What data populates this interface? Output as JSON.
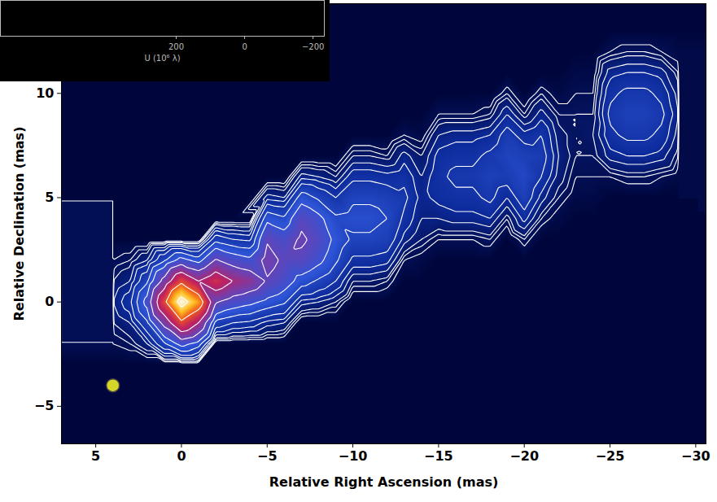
{
  "chart_data": [
    {
      "type": "image",
      "x_label": "Relative Right Ascension (mas)",
      "y_label": "Relative Declination (mas)",
      "xlim": [
        7,
        -30.6
      ],
      "ylim": [
        -6.8,
        14.3
      ],
      "xticks": [
        5,
        0,
        -5,
        -10,
        -15,
        -20,
        -25,
        -30
      ],
      "yticks": [
        -5,
        0,
        5,
        10
      ],
      "zlim": [
        0,
        100
      ],
      "contour_levels": [
        2,
        3,
        4,
        6,
        8,
        11,
        16,
        22,
        32,
        45,
        64,
        90
      ],
      "beam": {
        "x": 4,
        "y": -4
      },
      "columns": [
        {
          "x": 4,
          "y0": -3,
          "values": [
            0,
            2,
            4,
            6,
            4,
            2,
            0
          ]
        },
        {
          "x": 3,
          "y0": -3,
          "values": [
            0,
            3,
            6,
            10,
            6,
            3,
            0
          ]
        },
        {
          "x": 2,
          "y0": -3,
          "values": [
            0,
            6,
            15,
            25,
            15,
            6,
            0
          ]
        },
        {
          "x": 1,
          "y0": -3,
          "values": [
            0,
            15,
            36,
            60,
            36,
            15,
            0
          ]
        },
        {
          "x": 0,
          "y0": -3,
          "values": [
            0,
            25,
            60,
            100,
            60,
            25,
            0
          ]
        },
        {
          "x": -1,
          "y0": -3,
          "values": [
            0,
            19,
            45,
            75,
            45,
            19,
            0
          ]
        },
        {
          "x": -2,
          "y0": -2,
          "values": [
            0,
            14,
            33,
            55,
            33,
            14,
            0
          ]
        },
        {
          "x": -3,
          "y0": -2,
          "values": [
            0,
            11,
            27,
            45,
            27,
            11,
            0
          ]
        },
        {
          "x": -4,
          "y0": -2,
          "values": [
            0,
            10,
            24,
            40,
            24,
            10,
            0
          ]
        },
        {
          "x": -5,
          "y0": -2,
          "values": [
            0,
            7,
            20,
            31,
            36,
            31,
            20,
            7,
            0
          ]
        },
        {
          "x": -6,
          "y0": -2,
          "values": [
            0,
            6,
            17,
            26,
            30,
            26,
            17,
            6,
            0
          ]
        },
        {
          "x": -7,
          "y0": -1,
          "values": [
            0,
            7,
            19,
            29,
            34,
            29,
            19,
            7,
            0
          ]
        },
        {
          "x": -8,
          "y0": -1,
          "values": [
            0,
            6,
            15,
            24,
            28,
            24,
            15,
            6,
            0
          ]
        },
        {
          "x": -9,
          "y0": -1,
          "values": [
            0,
            4,
            11,
            17,
            20,
            17,
            11,
            4,
            0
          ]
        },
        {
          "x": -10,
          "y0": 0,
          "values": [
            0,
            4,
            10,
            15,
            18,
            15,
            10,
            4,
            0
          ]
        },
        {
          "x": -11,
          "y0": 0,
          "values": [
            0,
            4,
            10,
            15,
            18,
            15,
            10,
            4,
            0
          ]
        },
        {
          "x": -12,
          "y0": 0,
          "values": [
            0,
            3,
            9,
            14,
            16,
            14,
            9,
            3,
            0
          ]
        },
        {
          "x": -13,
          "y0": 1,
          "values": [
            0,
            2,
            7,
            10,
            12,
            10,
            7,
            2,
            0
          ]
        },
        {
          "x": -14,
          "y0": 1,
          "values": [
            0,
            1,
            4,
            6,
            7,
            6,
            4,
            1,
            0
          ]
        },
        {
          "x": -15,
          "y0": 2,
          "values": [
            0,
            2,
            6,
            9,
            10,
            9,
            6,
            2,
            0
          ]
        },
        {
          "x": -16,
          "y0": 2,
          "values": [
            0,
            2,
            7,
            10,
            12,
            10,
            7,
            2,
            0
          ]
        },
        {
          "x": -17,
          "y0": 2,
          "values": [
            0,
            2,
            7,
            10,
            12,
            10,
            7,
            2,
            0
          ]
        },
        {
          "x": -18,
          "y0": 2,
          "values": [
            0,
            3,
            8,
            12,
            14,
            12,
            8,
            3,
            0
          ]
        },
        {
          "x": -19,
          "y0": 3,
          "values": [
            0,
            3,
            8,
            13,
            15,
            13,
            8,
            3,
            0
          ]
        },
        {
          "x": -20,
          "y0": 2,
          "values": [
            0,
            3,
            9,
            14,
            16,
            14,
            9,
            3,
            0
          ]
        },
        {
          "x": -21,
          "y0": 3,
          "values": [
            0,
            3,
            7,
            11,
            13,
            11,
            7,
            3,
            0
          ]
        },
        {
          "x": -22,
          "y0": 3,
          "values": [
            0,
            1,
            3,
            5,
            6,
            5,
            3,
            1,
            0
          ]
        },
        {
          "x": -23,
          "y0": 4,
          "values": [
            0,
            1,
            2,
            3,
            3,
            3,
            2,
            1,
            0
          ]
        },
        {
          "x": -24,
          "y0": 4,
          "values": [
            0,
            1,
            2,
            3,
            4,
            3,
            2,
            1,
            0
          ]
        },
        {
          "x": -25,
          "y0": 5,
          "values": [
            0,
            2,
            7,
            10,
            12,
            10,
            7,
            2,
            0
          ]
        },
        {
          "x": -26,
          "y0": 5,
          "values": [
            0,
            3,
            8,
            12,
            14,
            12,
            8,
            3,
            0
          ]
        },
        {
          "x": -27,
          "y0": 5,
          "values": [
            0,
            3,
            8,
            12,
            14,
            12,
            8,
            3,
            0
          ]
        },
        {
          "x": -28,
          "y0": 5,
          "values": [
            0,
            2,
            7,
            10,
            12,
            10,
            7,
            2,
            0
          ]
        },
        {
          "x": -29,
          "y0": 5,
          "values": [
            0,
            1,
            3,
            5,
            6,
            5,
            3,
            1,
            0
          ]
        }
      ]
    },
    {
      "type": "uv_coverage",
      "x_label": "U (10⁶ λ)",
      "xlim": [
        714,
        -233
      ],
      "xticks": [
        200,
        0,
        -200
      ],
      "tick_labels": "x"
    }
  ]
}
